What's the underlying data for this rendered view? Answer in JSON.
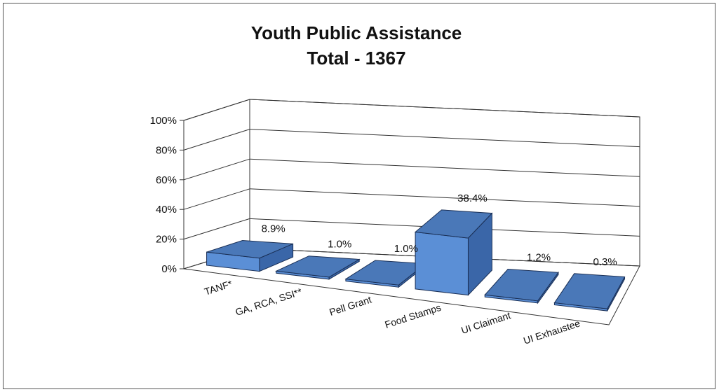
{
  "chart_data": {
    "type": "bar",
    "title": "Youth Public Assistance",
    "subtitle": "Total - 1367",
    "categories": [
      "TANF*",
      "GA, RCA, SSI**",
      "Pell Grant",
      "Food Stamps",
      "UI Claimant",
      "UI Exhaustee"
    ],
    "values": [
      8.9,
      1.0,
      1.0,
      38.4,
      1.2,
      0.3
    ],
    "value_labels": [
      "8.9%",
      "1.0%",
      "1.0%",
      "38.4%",
      "1.2%",
      "0.3%"
    ],
    "yticks": [
      "0%",
      "20%",
      "40%",
      "60%",
      "80%",
      "100%"
    ],
    "ylim": [
      0,
      100
    ],
    "grid": true,
    "legend": "none",
    "three_d": true,
    "colors": {
      "front": "#5b8fd6",
      "top": "#4a78b8",
      "side": "#3a66a8",
      "grid": "#333333"
    }
  }
}
